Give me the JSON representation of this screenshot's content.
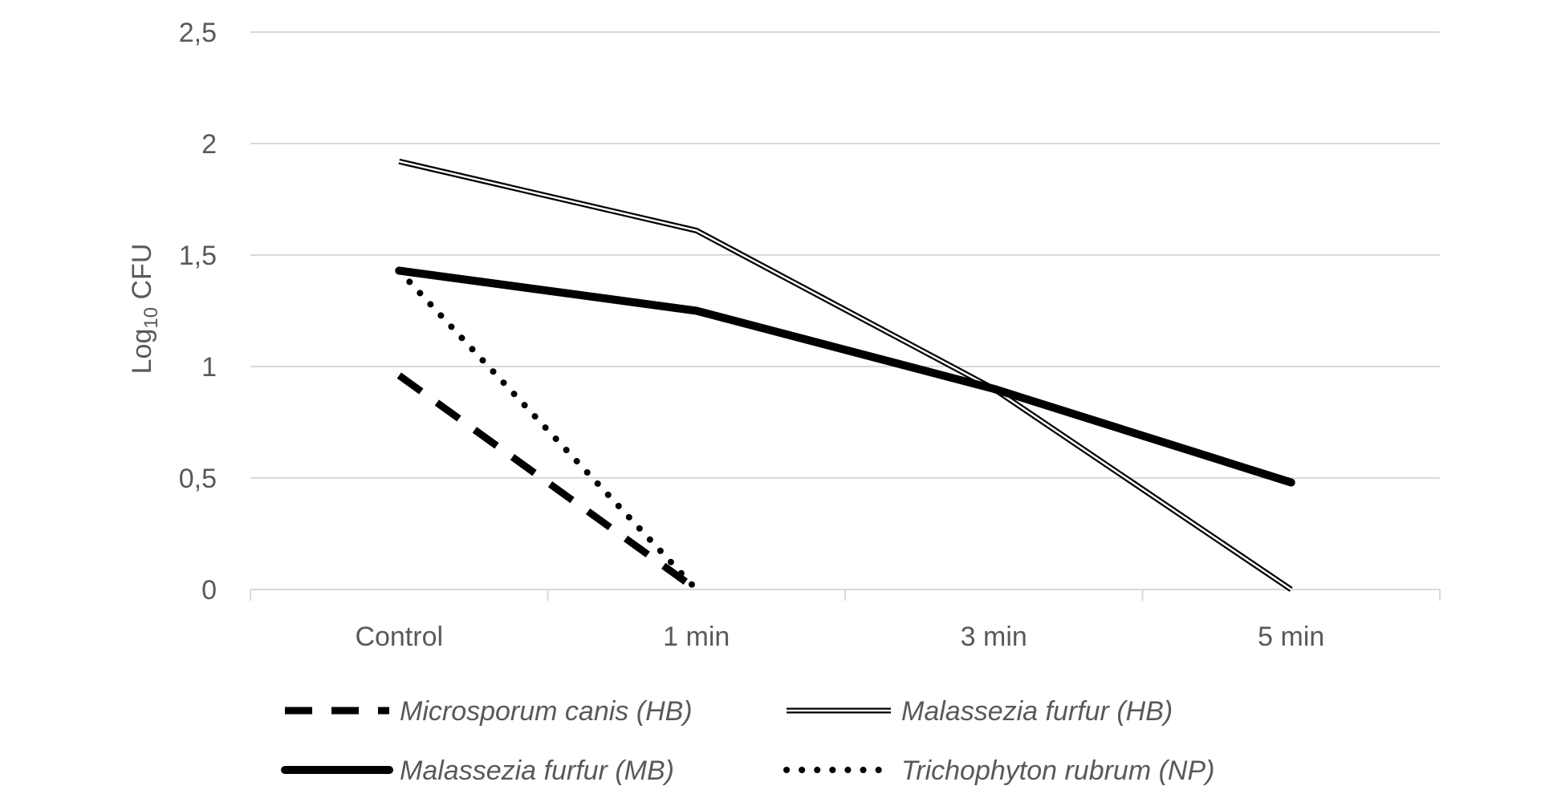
{
  "chart_data": {
    "type": "line",
    "title": "",
    "xlabel": "",
    "ylabel_main": "Log",
    "ylabel_sub": "10",
    "ylabel_tail": " CFU",
    "categories": [
      "Control",
      "1 min",
      "3 min",
      "5 min"
    ],
    "ylim": [
      0,
      2.5
    ],
    "yticks": [
      0,
      0.5,
      1,
      1.5,
      2,
      2.5
    ],
    "ytick_labels": [
      "0",
      "0,5",
      "1",
      "1,5",
      "2",
      "2,5"
    ],
    "grid": true,
    "legend_position": "bottom",
    "series": [
      {
        "name": "Microsporum canis (HB)",
        "style": "dashed",
        "values": [
          0.96,
          0,
          null,
          null
        ]
      },
      {
        "name": "Malassezia furfur (HB)",
        "style": "double",
        "values": [
          1.92,
          1.61,
          0.9,
          0
        ]
      },
      {
        "name": "Malassezia furfur (MB)",
        "style": "solid-thick",
        "values": [
          1.43,
          1.25,
          0.9,
          0.48
        ]
      },
      {
        "name": "Trichophyton rubrum (NP)",
        "style": "dotted",
        "values": [
          1.43,
          0,
          null,
          null
        ]
      }
    ],
    "colors": {
      "lines": "#000000",
      "grid": "#d9d9d9",
      "text": "#595959"
    }
  }
}
